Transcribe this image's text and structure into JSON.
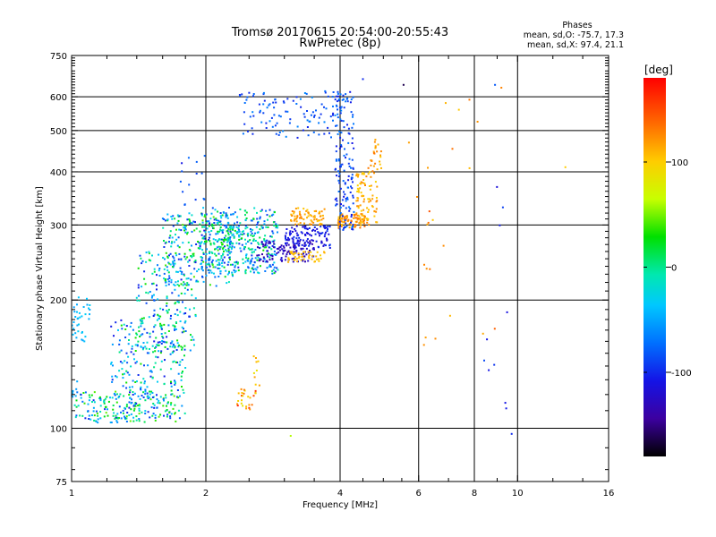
{
  "title": {
    "line1": "Tromsø 20170615 20:54:00-20:55:43",
    "line2": "RwPretec (8p)"
  },
  "stats": {
    "heading": "Phases",
    "o_mode": "mean, sd,O: -75.7, 17.3",
    "x_mode": "mean, sd,X:  97.4, 21.1"
  },
  "colorbar": {
    "label": "[deg]",
    "ticks": [
      "100",
      "0",
      "-100"
    ],
    "tick_values": [
      100,
      0,
      -100
    ],
    "range": [
      -180,
      180
    ]
  },
  "chart_data": {
    "type": "scatter",
    "xlabel": "Frequency [MHz]",
    "ylabel": "Stationary phase Virtual Height [km]",
    "xscale": "log",
    "yscale": "log",
    "xlim": [
      1,
      16
    ],
    "ylim": [
      75,
      750
    ],
    "xticks": [
      1,
      2,
      4,
      6,
      8,
      10,
      16
    ],
    "xtick_labels": [
      "1",
      "2",
      "4",
      "6",
      "8",
      "10",
      "16"
    ],
    "xminor": [
      1.2,
      1.4,
      1.6,
      1.8,
      2.5,
      3,
      3.5,
      4.5,
      5,
      5.5,
      7,
      9,
      12,
      14
    ],
    "yticks": [
      75,
      100,
      200,
      300,
      400,
      500,
      600,
      750
    ],
    "ytick_labels": [
      "75",
      "100",
      "200",
      "300",
      "400",
      "500",
      "600",
      "750"
    ],
    "grid_x": [
      2,
      4,
      6,
      8,
      10
    ],
    "grid_y": [
      100,
      200,
      300,
      400,
      500,
      600
    ],
    "clusters": [
      {
        "f": [
          1.0,
          1.75
        ],
        "h": [
          103,
          122
        ],
        "phase": [
          -95,
          55
        ],
        "n": 170
      },
      {
        "f": [
          1.22,
          1.8
        ],
        "h": [
          105,
          180
        ],
        "phase": [
          -100,
          40
        ],
        "n": 230
      },
      {
        "f": [
          1.4,
          1.9
        ],
        "h": [
          150,
          260
        ],
        "phase": [
          -100,
          40
        ],
        "n": 200
      },
      {
        "f": [
          1.6,
          2.3
        ],
        "h": [
          215,
          320
        ],
        "phase": [
          -100,
          50
        ],
        "n": 260
      },
      {
        "f": [
          1.95,
          2.9
        ],
        "h": [
          230,
          330
        ],
        "phase": [
          -95,
          30
        ],
        "n": 320
      },
      {
        "f": [
          2.1,
          2.9
        ],
        "h": [
          255,
          300
        ],
        "phase": [
          -30,
          35
        ],
        "n": 70
      },
      {
        "f": [
          2.6,
          3.5
        ],
        "h": [
          245,
          275
        ],
        "phase": [
          -140,
          -110
        ],
        "n": 110
      },
      {
        "f": [
          3.0,
          3.8
        ],
        "h": [
          265,
          300
        ],
        "phase": [
          -115,
          -85
        ],
        "n": 110
      },
      {
        "f": [
          3.05,
          3.7
        ],
        "h": [
          245,
          260
        ],
        "phase": [
          105,
          125
        ],
        "n": 45
      },
      {
        "f": [
          3.1,
          3.7
        ],
        "h": [
          300,
          330
        ],
        "phase": [
          110,
          140
        ],
        "n": 70
      },
      {
        "f": [
          3.95,
          4.55
        ],
        "h": [
          295,
          320
        ],
        "phase": [
          115,
          150
        ],
        "n": 90
      },
      {
        "f": [
          4.35,
          4.85
        ],
        "h": [
          300,
          400
        ],
        "phase": [
          105,
          140
        ],
        "n": 80
      },
      {
        "f": [
          4.6,
          4.95
        ],
        "h": [
          400,
          480
        ],
        "phase": [
          110,
          150
        ],
        "n": 25
      },
      {
        "f": [
          3.9,
          4.3
        ],
        "h": [
          290,
          620
        ],
        "phase": [
          -100,
          -55
        ],
        "n": 150
      },
      {
        "f": [
          2.35,
          4.05
        ],
        "h": [
          480,
          620
        ],
        "phase": [
          -95,
          -50
        ],
        "n": 110
      },
      {
        "f": [
          1.0,
          1.1
        ],
        "h": [
          160,
          210
        ],
        "phase": [
          -40,
          -20
        ],
        "n": 35
      },
      {
        "f": [
          1.0,
          1.06
        ],
        "h": [
          118,
          130
        ],
        "phase": [
          -45,
          -25
        ],
        "n": 8
      },
      {
        "f": [
          2.35,
          2.6
        ],
        "h": [
          110,
          125
        ],
        "phase": [
          90,
          175
        ],
        "n": 25
      },
      {
        "f": [
          2.55,
          2.65
        ],
        "h": [
          120,
          150
        ],
        "phase": [
          95,
          130
        ],
        "n": 10
      },
      {
        "f": [
          1.75,
          2.0
        ],
        "h": [
          330,
          440
        ],
        "phase": [
          -100,
          -60
        ],
        "n": 15
      },
      {
        "f": [
          5.7,
          9.0
        ],
        "h": [
          150,
          600
        ],
        "phase": [
          110,
          160
        ],
        "n": 22
      },
      {
        "f": [
          8.3,
          10.0
        ],
        "h": [
          95,
          380
        ],
        "phase": [
          -110,
          -70
        ],
        "n": 10
      }
    ],
    "points": [
      {
        "f": 12.8,
        "h": 410,
        "phase": 110
      },
      {
        "f": 8.9,
        "h": 640,
        "phase": -70
      },
      {
        "f": 9.2,
        "h": 630,
        "phase": 140
      },
      {
        "f": 5.55,
        "h": 640,
        "phase": -160
      },
      {
        "f": 9.7,
        "h": 97,
        "phase": -90
      },
      {
        "f": 3.1,
        "h": 96,
        "phase": 70
      },
      {
        "f": 6.9,
        "h": 580,
        "phase": 120
      },
      {
        "f": 4.5,
        "h": 660,
        "phase": -90
      }
    ]
  }
}
